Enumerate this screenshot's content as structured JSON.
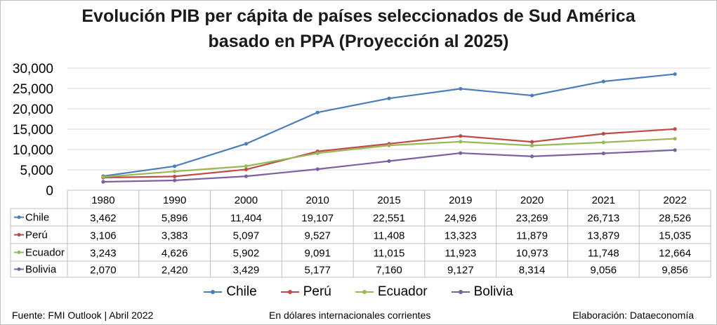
{
  "title_line1": "Evolución PIB per cápita de países seleccionados de Sud América",
  "title_line2": "basado en PPA (Proyección al 2025)",
  "footer": {
    "source": "Fuente: FMI Outlook | Abril 2022",
    "unit": "En dólares internacionales corrientes",
    "credit": "Elaboración: Dataeconomía"
  },
  "chart_data": {
    "type": "line",
    "title": "Evolución PIB per cápita de países seleccionados de Sud América basado en PPA (Proyección al 2025)",
    "categories": [
      "1980",
      "1990",
      "2000",
      "2010",
      "2015",
      "2019",
      "2020",
      "2021",
      "2022"
    ],
    "ylim": [
      0,
      30000
    ],
    "yticks": [
      "0",
      "5,000",
      "10,000",
      "15,000",
      "20,000",
      "25,000",
      "30,000"
    ],
    "grid": true,
    "legend_position": "bottom",
    "data_table": true,
    "series": [
      {
        "name": "Chile",
        "color": "#4a7ebb",
        "values": [
          3462,
          5896,
          11404,
          19107,
          22551,
          24926,
          23269,
          26713,
          28526
        ],
        "labels": [
          "3,462",
          "5,896",
          "11,404",
          "19,107",
          "22,551",
          "24,926",
          "23,269",
          "26,713",
          "28,526"
        ]
      },
      {
        "name": "Perú",
        "color": "#be4b48",
        "values": [
          3106,
          3383,
          5097,
          9527,
          11408,
          13323,
          11879,
          13879,
          15035
        ],
        "labels": [
          "3,106",
          "3,383",
          "5,097",
          "9,527",
          "11,408",
          "13,323",
          "11,879",
          "13,879",
          "15,035"
        ]
      },
      {
        "name": "Ecuador",
        "color": "#98b954",
        "values": [
          3243,
          4626,
          5902,
          9091,
          11015,
          11923,
          10973,
          11748,
          12664
        ],
        "labels": [
          "3,243",
          "4,626",
          "5,902",
          "9,091",
          "11,015",
          "11,923",
          "10,973",
          "11,748",
          "12,664"
        ]
      },
      {
        "name": "Bolivia",
        "color": "#7d60a0",
        "values": [
          2070,
          2420,
          3429,
          5177,
          7160,
          9127,
          8314,
          9056,
          9856
        ],
        "labels": [
          "2,070",
          "2,420",
          "3,429",
          "5,177",
          "7,160",
          "9,127",
          "8,314",
          "9,056",
          "9,856"
        ]
      }
    ]
  }
}
